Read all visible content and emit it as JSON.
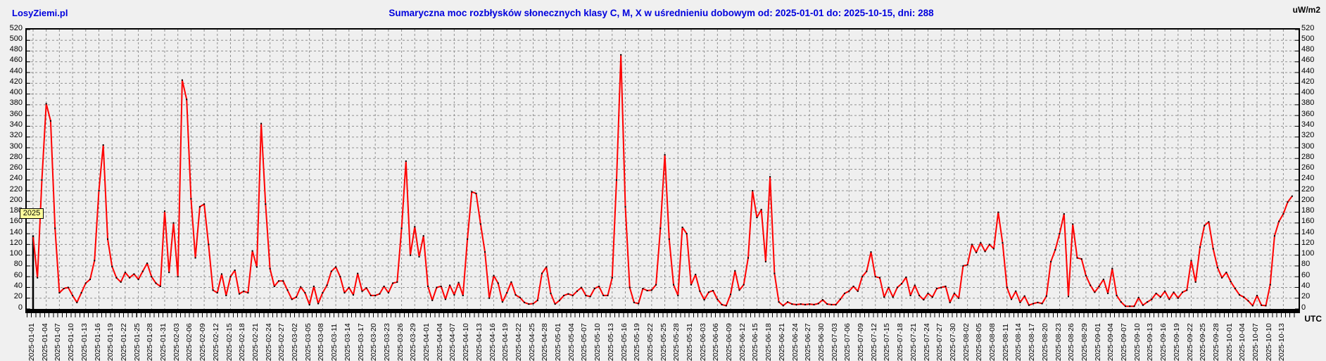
{
  "header": {
    "brand": "LosyZiemi.pl",
    "title": "Sumaryczna moc rozbłysków słonecznych klasy C, M, X w uśrednieniu dobowym od: 2025-01-01 do: 2025-10-15, dni: 288",
    "unit_right": "uW/m2"
  },
  "footer": {
    "timezone_label": "UTC"
  },
  "annotations": {
    "year_label": "2025",
    "year_label_bg": "#ffff9c",
    "year_marker_day_index": 0,
    "year_marker_top_value": 137
  },
  "chart_data": {
    "type": "line",
    "title": "Sumaryczna moc rozbłysków słonecznych klasy C, M, X w uśrednieniu dobowym od: 2025-01-01 do: 2025-10-15, dni: 288",
    "xlabel": "UTC",
    "ylabel": "uW/m2",
    "start_date": "2025-01-01",
    "end_date": "2025-10-15",
    "days": 288,
    "ylim": [
      0,
      520
    ],
    "y_tick_step": 20,
    "x_tick_step_days": 3,
    "grid": true,
    "line_color": "#ff0000",
    "marker_color": "#000000",
    "grid_color": "#909090",
    "y_ticks": [
      0,
      20,
      40,
      60,
      80,
      100,
      120,
      140,
      160,
      180,
      200,
      220,
      240,
      260,
      280,
      300,
      320,
      340,
      360,
      380,
      400,
      420,
      440,
      460,
      480,
      500,
      520
    ],
    "x_tick_labels": [
      "2025-01-01",
      "2025-01-04",
      "2025-01-07",
      "2025-01-10",
      "2025-01-13",
      "2025-01-16",
      "2025-01-19",
      "2025-01-22",
      "2025-01-25",
      "2025-01-28",
      "2025-01-31",
      "2025-02-03",
      "2025-02-06",
      "2025-02-09",
      "2025-02-12",
      "2025-02-15",
      "2025-02-18",
      "2025-02-21",
      "2025-02-24",
      "2025-02-27",
      "2025-03-02",
      "2025-03-05",
      "2025-03-08",
      "2025-03-11",
      "2025-03-14",
      "2025-03-17",
      "2025-03-20",
      "2025-03-23",
      "2025-03-26",
      "2025-03-29",
      "2025-04-01",
      "2025-04-04",
      "2025-04-07",
      "2025-04-10",
      "2025-04-13",
      "2025-04-16",
      "2025-04-19",
      "2025-04-22",
      "2025-04-25",
      "2025-04-28",
      "2025-05-01",
      "2025-05-04",
      "2025-05-07",
      "2025-05-10",
      "2025-05-13",
      "2025-05-16",
      "2025-05-19",
      "2025-05-22",
      "2025-05-25",
      "2025-05-28",
      "2025-05-31",
      "2025-06-03",
      "2025-06-06",
      "2025-06-09",
      "2025-06-12",
      "2025-06-15",
      "2025-06-18",
      "2025-06-21",
      "2025-06-24",
      "2025-06-27",
      "2025-06-30",
      "2025-07-03",
      "2025-07-06",
      "2025-07-09",
      "2025-07-12",
      "2025-07-15",
      "2025-07-18",
      "2025-07-21",
      "2025-07-24",
      "2025-07-27",
      "2025-07-30",
      "2025-08-02",
      "2025-08-05",
      "2025-08-08",
      "2025-08-11",
      "2025-08-14",
      "2025-08-17",
      "2025-08-20",
      "2025-08-23",
      "2025-08-26",
      "2025-08-29",
      "2025-09-01",
      "2025-09-04",
      "2025-09-07",
      "2025-09-10",
      "2025-09-13",
      "2025-09-16",
      "2025-09-19",
      "2025-09-22",
      "2025-09-25",
      "2025-09-28",
      "2025-10-01",
      "2025-10-04",
      "2025-10-07",
      "2025-10-10",
      "2025-10-13"
    ],
    "values": [
      135,
      58,
      240,
      382,
      350,
      150,
      30,
      38,
      40,
      25,
      12,
      30,
      48,
      55,
      90,
      220,
      305,
      130,
      79,
      58,
      50,
      68,
      58,
      65,
      55,
      70,
      85,
      60,
      48,
      42,
      182,
      68,
      160,
      60,
      426,
      390,
      205,
      95,
      190,
      195,
      120,
      35,
      30,
      65,
      25,
      60,
      72,
      28,
      33,
      30,
      108,
      78,
      345,
      195,
      75,
      42,
      52,
      52,
      35,
      18,
      22,
      41,
      30,
      8,
      42,
      10,
      30,
      44,
      70,
      78,
      60,
      30,
      40,
      26,
      66,
      33,
      39,
      25,
      25,
      28,
      42,
      30,
      48,
      50,
      150,
      275,
      100,
      153,
      97,
      136,
      42,
      16,
      40,
      42,
      18,
      44,
      26,
      49,
      25,
      130,
      218,
      215,
      158,
      106,
      20,
      62,
      48,
      13,
      30,
      50,
      26,
      21,
      12,
      9,
      10,
      16,
      66,
      78,
      29,
      9,
      16,
      25,
      28,
      25,
      33,
      40,
      25,
      23,
      38,
      42,
      25,
      25,
      58,
      240,
      473,
      190,
      40,
      12,
      10,
      38,
      34,
      35,
      45,
      150,
      287,
      130,
      45,
      25,
      152,
      140,
      45,
      64,
      33,
      17,
      31,
      34,
      18,
      8,
      6,
      27,
      71,
      35,
      45,
      95,
      220,
      170,
      185,
      88,
      246,
      66,
      13,
      6,
      13,
      9,
      8,
      9,
      8,
      9,
      8,
      10,
      17,
      9,
      8,
      8,
      18,
      29,
      33,
      42,
      33,
      60,
      70,
      106,
      60,
      58,
      22,
      40,
      22,
      40,
      47,
      59,
      25,
      44,
      25,
      17,
      29,
      22,
      38,
      40,
      42,
      12,
      29,
      20,
      80,
      82,
      120,
      105,
      123,
      107,
      120,
      112,
      180,
      123,
      40,
      18,
      33,
      12,
      24,
      7,
      10,
      12,
      10,
      24,
      88,
      110,
      140,
      177,
      23,
      158,
      95,
      93,
      62,
      44,
      31,
      42,
      55,
      29,
      75,
      25,
      13,
      5,
      5,
      5,
      21,
      7,
      13,
      18,
      29,
      22,
      33,
      18,
      31,
      20,
      31,
      35,
      90,
      50,
      115,
      155,
      162,
      112,
      77,
      58,
      68,
      51,
      38,
      26,
      22,
      15,
      6,
      25,
      7,
      6,
      45,
      136,
      163,
      177,
      199,
      210
    ]
  }
}
